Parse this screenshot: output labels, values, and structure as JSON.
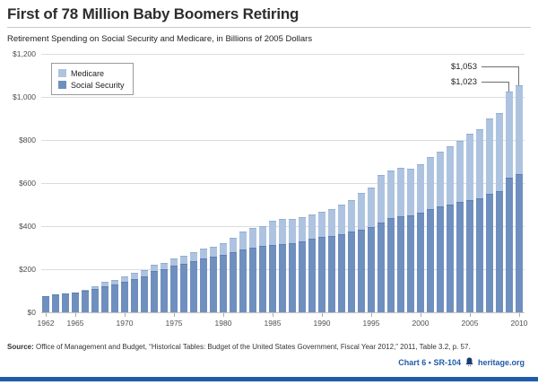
{
  "header": {
    "title": "First of 78 Million Baby Boomers Retiring",
    "subtitle": "Retirement Spending on Social Security and Medicare, in Billions of 2005 Dollars"
  },
  "legend": {
    "items": [
      {
        "label": "Medicare",
        "color": "#adc3e0"
      },
      {
        "label": "Social Security",
        "color": "#6f8fbe"
      }
    ]
  },
  "footer": {
    "source_label": "Source:",
    "source_text": " Office of Management and Budget, “Historical Tables: Budget of the United States Government, Fiscal Year 2012,” 2011, Table 3.2, p. 57.",
    "credit": "Chart 6 • SR-104",
    "site": "heritage.org",
    "accent_color": "#1f5ca9"
  },
  "chart_data": {
    "type": "bar",
    "stacked": true,
    "title": "First of 78 Million Baby Boomers Retiring",
    "subtitle": "Retirement Spending on Social Security and Medicare, in Billions of 2005 Dollars",
    "xlabel": "",
    "ylabel": "Billions of 2005 Dollars",
    "ylim": [
      0,
      1200
    ],
    "grid": "horizontal",
    "legend_position": "top-left",
    "y_tick_labels": [
      "$0",
      "$200",
      "$400",
      "$600",
      "$800",
      "$1,000",
      "$1,200"
    ],
    "x_tick_labels": [
      "1962",
      "1965",
      "1970",
      "1975",
      "1980",
      "1985",
      "1990",
      "1995",
      "2000",
      "2005",
      "2010"
    ],
    "categories": [
      1962,
      1963,
      1964,
      1965,
      1966,
      1967,
      1968,
      1969,
      1970,
      1971,
      1972,
      1973,
      1974,
      1975,
      1976,
      1977,
      1978,
      1979,
      1980,
      1981,
      1982,
      1983,
      1984,
      1985,
      1986,
      1987,
      1988,
      1989,
      1990,
      1991,
      1992,
      1993,
      1994,
      1995,
      1996,
      1997,
      1998,
      1999,
      2000,
      2001,
      2002,
      2003,
      2004,
      2005,
      2006,
      2007,
      2008,
      2009,
      2010
    ],
    "series": [
      {
        "name": "Social Security",
        "color": "#6f8fbe",
        "cap_color": "#5d7eae",
        "values": [
          75,
          82,
          86,
          90,
          100,
          110,
          122,
          130,
          140,
          153,
          167,
          190,
          198,
          215,
          226,
          238,
          249,
          258,
          268,
          280,
          290,
          302,
          307,
          314,
          317,
          321,
          331,
          340,
          348,
          355,
          364,
          375,
          385,
          396,
          416,
          436,
          445,
          450,
          464,
          479,
          490,
          500,
          511,
          522,
          528,
          552,
          563,
          623,
          640
        ]
      },
      {
        "name": "Medicare",
        "color": "#adc3e0",
        "cap_color": "#93aed2",
        "values": [
          0,
          0,
          0,
          0,
          4,
          14,
          20,
          21,
          25,
          28,
          28,
          28,
          31,
          33,
          36,
          40,
          44,
          47,
          55,
          66,
          83,
          92,
          93,
          111,
          115,
          114,
          113,
          114,
          115,
          124,
          136,
          145,
          172,
          185,
          219,
          220,
          225,
          216,
          226,
          241,
          255,
          272,
          285,
          307,
          319,
          349,
          361,
          400,
          413
        ]
      }
    ],
    "annotations": [
      {
        "year": 2010,
        "label": "$1,053",
        "value": 1053
      },
      {
        "year": 2009,
        "label": "$1,023",
        "value": 1023
      }
    ]
  }
}
